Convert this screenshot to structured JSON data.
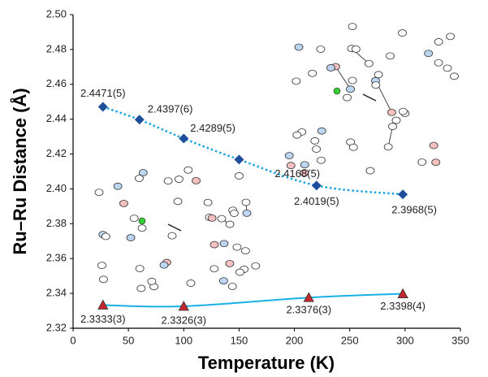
{
  "chart_data": {
    "type": "scatter",
    "x_label": "Temperature (K)",
    "y_label": "Ru–Ru Distance (Å)",
    "xlim": [
      0,
      350
    ],
    "xticks": [
      0,
      50,
      100,
      150,
      200,
      250,
      300,
      350
    ],
    "ylim": [
      2.32,
      2.5
    ],
    "yticks": [
      2.32,
      2.34,
      2.36,
      2.38,
      {
        "value": 2.4,
        "label": "2.40"
      },
      2.42,
      2.44,
      2.46,
      2.48,
      {
        "value": 2.5,
        "label": "2.50"
      }
    ],
    "series": [
      {
        "marker": "diamond",
        "color": "#1f4e9c",
        "line_color": "#1aa3e6",
        "line_style": "dotted",
        "x": [
          27,
          60,
          100,
          150,
          220,
          298
        ],
        "values": [
          2.4471,
          2.4397,
          2.4289,
          2.4168,
          2.4019,
          2.3968
        ],
        "value_labels": [
          "2.4471(5)",
          "2.4397(6)",
          "2.4289(5)",
          "2.4168(5)",
          "2.4019(5)",
          "2.3968(5)"
        ]
      },
      {
        "marker": "triangle",
        "color": "#c0282d",
        "line_color": "#1ab0e8",
        "line_style": "solid",
        "x": [
          27,
          100,
          213,
          298
        ],
        "values": [
          2.3333,
          2.3326,
          2.3376,
          2.3398
        ],
        "value_labels": [
          "2.3333(3)",
          "2.3326(3)",
          "2.3376(3)",
          "2.3398(4)"
        ]
      }
    ]
  }
}
